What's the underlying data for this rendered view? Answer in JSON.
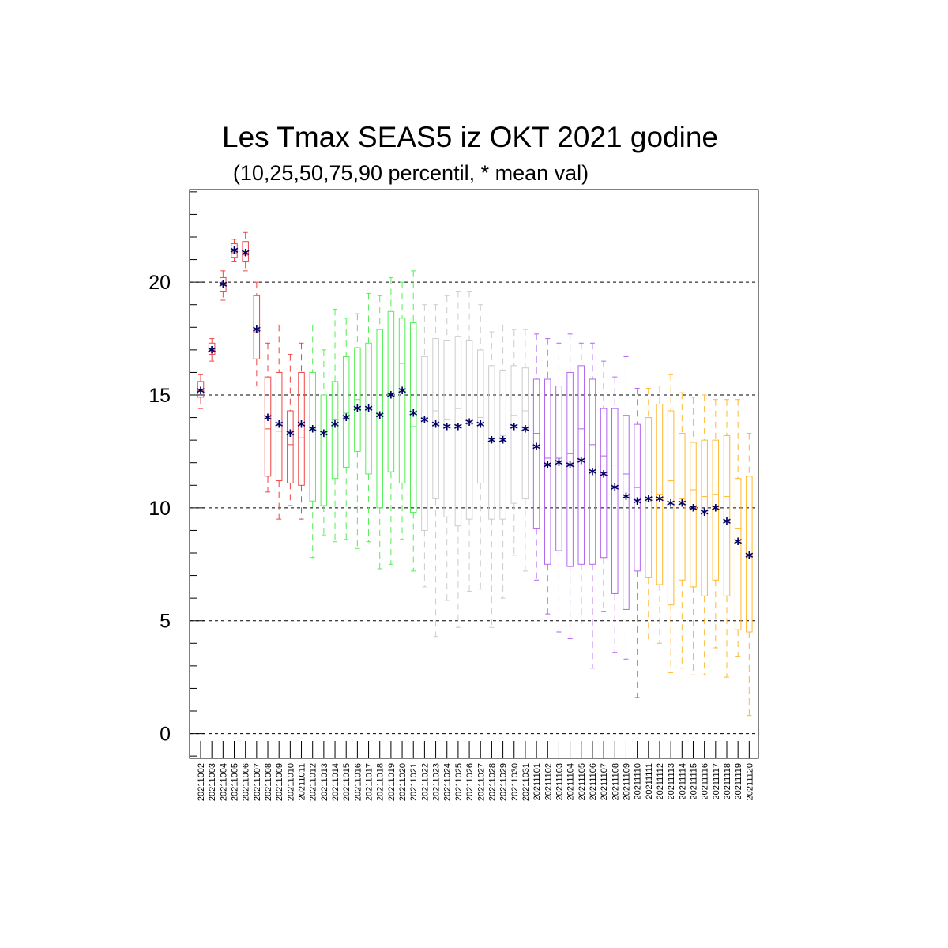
{
  "chart_data": {
    "type": "box",
    "title": "Les Tmax SEAS5 iz OKT 2021 godine",
    "subtitle": "(10,25,50,75,90 percentil, * mean val)",
    "xlabel": "",
    "ylabel": "",
    "ylim": [
      -1.1,
      24.1
    ],
    "yticks": [
      0,
      5,
      10,
      15,
      20
    ],
    "grid": "horizontal dashed at major y ticks",
    "mean_marker": "*",
    "mean_color": "#000066",
    "categories": [
      "20211002",
      "20211003",
      "20211004",
      "20211005",
      "20211006",
      "20211007",
      "20211008",
      "20211009",
      "20211010",
      "20211011",
      "20211012",
      "20211013",
      "20211014",
      "20211015",
      "20211016",
      "20211017",
      "20211018",
      "20211019",
      "20211020",
      "20211021",
      "20211022",
      "20211023",
      "20211024",
      "20211025",
      "20211026",
      "20211027",
      "20211028",
      "20211029",
      "20211030",
      "20211031",
      "20211101",
      "20211102",
      "20211103",
      "20211104",
      "20211105",
      "20211106",
      "20211107",
      "20211108",
      "20211109",
      "20211110",
      "20211111",
      "20211112",
      "20211113",
      "20211114",
      "20211115",
      "20211116",
      "20211117",
      "20211118",
      "20211119",
      "20211120"
    ],
    "colors": [
      "#ee4444",
      "#ee4444",
      "#ee4444",
      "#ee4444",
      "#ee4444",
      "#ee4444",
      "#ee4444",
      "#ee4444",
      "#ee4444",
      "#ee4444",
      "#55ee55",
      "#55ee55",
      "#55ee55",
      "#55ee55",
      "#55ee55",
      "#55ee55",
      "#55ee55",
      "#55ee55",
      "#55ee55",
      "#55ee55",
      "#cccccc",
      "#cccccc",
      "#cccccc",
      "#cccccc",
      "#cccccc",
      "#cccccc",
      "#cccccc",
      "#cccccc",
      "#cccccc",
      "#cccccc",
      "#b266ee",
      "#b266ee",
      "#b266ee",
      "#b266ee",
      "#b266ee",
      "#b266ee",
      "#b266ee",
      "#b266ee",
      "#b266ee",
      "#b266ee",
      "#ffb833",
      "#ffb833",
      "#ffb833",
      "#ffb833",
      "#ffb833",
      "#ffb833",
      "#ffb833",
      "#ffb833",
      "#ffb833",
      "#ffb833"
    ],
    "p10": [
      14.4,
      16.5,
      19.2,
      20.9,
      20.5,
      15.4,
      10.7,
      9.5,
      10.1,
      9.5,
      7.8,
      8.8,
      8.5,
      8.6,
      8.2,
      8.5,
      7.3,
      7.5,
      8.6,
      7.2,
      6.5,
      4.3,
      5.9,
      4.7,
      6.3,
      6.4,
      4.7,
      6.0,
      7.9,
      7.2,
      6.8,
      5.3,
      4.5,
      4.2,
      4.9,
      2.9,
      5.4,
      3.6,
      3.3,
      1.6,
      4.1,
      4.0,
      2.7,
      2.9,
      2.6,
      2.6,
      3.8,
      2.5,
      3.4,
      0.8
    ],
    "p25": [
      14.9,
      16.8,
      19.6,
      21.1,
      20.9,
      16.6,
      11.4,
      11.2,
      11.1,
      11.0,
      10.3,
      10.1,
      11.3,
      11.8,
      12.5,
      11.5,
      10.0,
      11.6,
      11.1,
      9.8,
      9.0,
      10.4,
      9.6,
      9.2,
      9.5,
      11.1,
      9.5,
      9.5,
      10.2,
      10.4,
      9.1,
      7.5,
      8.1,
      7.4,
      7.5,
      7.5,
      7.8,
      6.2,
      5.5,
      7.2,
      6.9,
      6.6,
      5.7,
      6.8,
      6.5,
      6.1,
      6.8,
      6.1,
      4.6,
      4.5
    ],
    "p50": [
      15.2,
      17.0,
      19.9,
      21.3,
      21.2,
      17.8,
      13.5,
      13.4,
      12.8,
      13.1,
      13.5,
      13.1,
      13.9,
      14.2,
      14.8,
      14.6,
      14.1,
      15.4,
      16.4,
      13.6,
      14.0,
      14.3,
      13.9,
      14.4,
      13.7,
      14.0,
      12.9,
      13.2,
      14.1,
      14.3,
      13.3,
      12.2,
      12.2,
      12.4,
      13.5,
      12.8,
      12.3,
      11.9,
      11.5,
      10.9,
      10.3,
      10.6,
      11.2,
      10.4,
      10.8,
      10.5,
      10.6,
      10.5,
      9.1,
      7.8
    ],
    "p75": [
      15.6,
      17.3,
      20.2,
      21.7,
      21.8,
      19.4,
      15.8,
      16.0,
      14.3,
      16.0,
      16.0,
      15.0,
      15.6,
      16.7,
      17.1,
      17.3,
      17.9,
      18.7,
      18.4,
      18.2,
      16.7,
      17.5,
      17.4,
      17.6,
      17.4,
      17.0,
      16.3,
      16.1,
      16.3,
      16.2,
      15.7,
      15.7,
      15.4,
      16.0,
      16.3,
      15.7,
      14.4,
      14.4,
      14.1,
      13.7,
      14.0,
      14.6,
      14.3,
      13.3,
      12.9,
      13.0,
      13.0,
      13.2,
      11.3,
      11.4
    ],
    "p90": [
      15.9,
      17.5,
      20.5,
      21.9,
      22.2,
      20.0,
      17.3,
      18.1,
      16.8,
      17.3,
      18.1,
      17.0,
      18.8,
      18.4,
      18.6,
      19.5,
      19.4,
      20.2,
      20.0,
      20.5,
      19.0,
      19.0,
      19.4,
      19.6,
      19.6,
      19.0,
      17.8,
      18.1,
      17.9,
      17.9,
      17.7,
      17.5,
      17.3,
      17.7,
      17.3,
      17.3,
      16.5,
      15.8,
      16.7,
      15.3,
      15.3,
      15.4,
      15.9,
      15.1,
      14.9,
      15.0,
      14.8,
      14.8,
      14.8,
      13.3
    ],
    "mean": [
      15.2,
      17.0,
      19.9,
      21.4,
      21.3,
      17.9,
      14.0,
      13.7,
      13.3,
      13.7,
      13.5,
      13.3,
      13.7,
      14.0,
      14.4,
      14.4,
      14.1,
      15.0,
      15.2,
      14.2,
      13.9,
      13.7,
      13.6,
      13.6,
      13.8,
      13.7,
      13.0,
      13.0,
      13.6,
      13.5,
      12.7,
      11.9,
      12.0,
      11.9,
      12.1,
      11.6,
      11.5,
      10.9,
      10.5,
      10.3,
      10.4,
      10.4,
      10.2,
      10.2,
      10.0,
      9.8,
      10.0,
      9.4,
      8.5,
      7.9
    ]
  }
}
